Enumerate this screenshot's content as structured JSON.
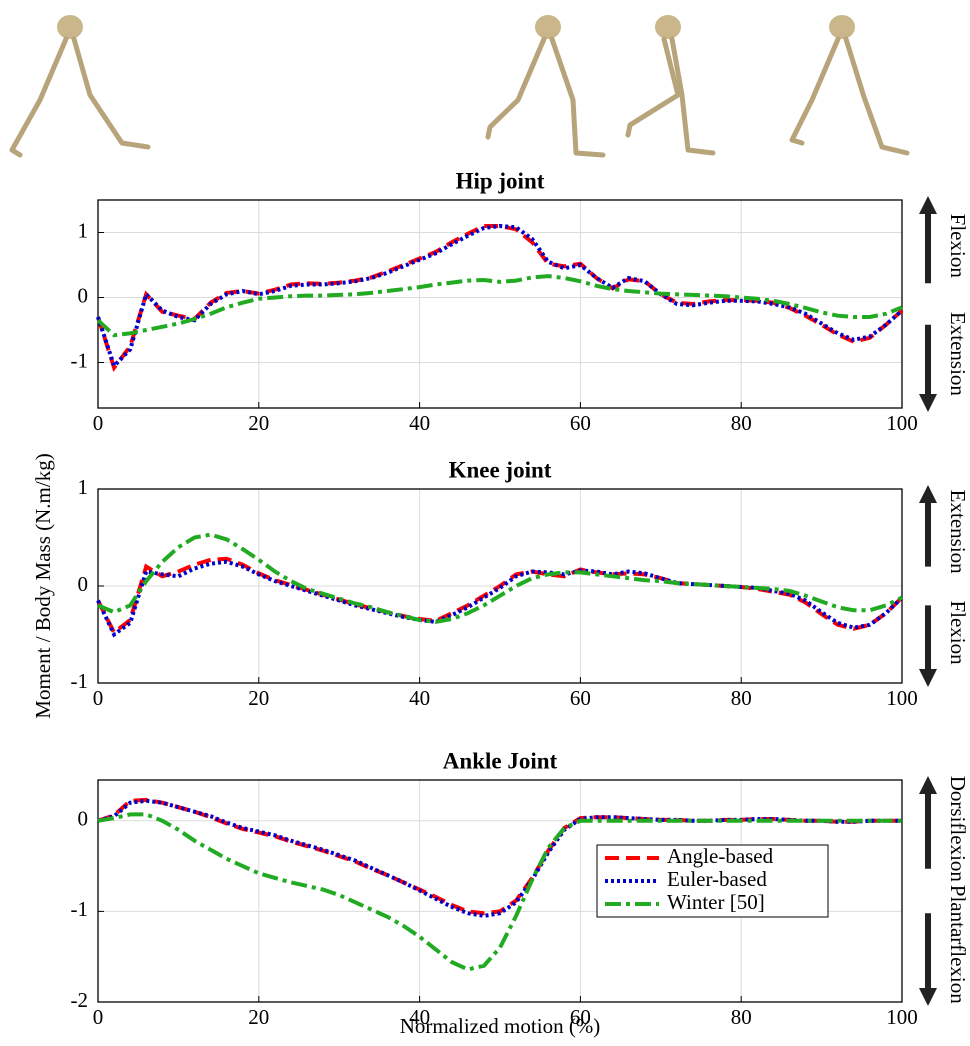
{
  "chart_data": [
    {
      "type": "line",
      "title": "Hip joint",
      "x": [
        0,
        2,
        4,
        6,
        8,
        10,
        12,
        14,
        16,
        18,
        20,
        22,
        24,
        26,
        28,
        30,
        32,
        34,
        36,
        38,
        40,
        42,
        44,
        46,
        48,
        50,
        52,
        54,
        56,
        58,
        60,
        62,
        64,
        66,
        68,
        70,
        72,
        74,
        76,
        78,
        80,
        82,
        84,
        86,
        88,
        90,
        92,
        94,
        96,
        98,
        100
      ],
      "series": [
        {
          "name": "Angle-based",
          "color": "#ff0000",
          "dash": "dashed",
          "values": [
            -0.3,
            -1.08,
            -0.75,
            0.05,
            -0.22,
            -0.28,
            -0.33,
            -0.08,
            0.07,
            0.1,
            0.06,
            0.12,
            0.2,
            0.22,
            0.21,
            0.23,
            0.26,
            0.31,
            0.4,
            0.5,
            0.6,
            0.7,
            0.85,
            0.98,
            1.1,
            1.1,
            1.05,
            0.85,
            0.52,
            0.48,
            0.52,
            0.3,
            0.14,
            0.28,
            0.25,
            0.05,
            -0.08,
            -0.1,
            -0.06,
            -0.04,
            -0.04,
            -0.05,
            -0.08,
            -0.16,
            -0.28,
            -0.42,
            -0.57,
            -0.68,
            -0.62,
            -0.42,
            -0.2
          ]
        },
        {
          "name": "Euler-based",
          "color": "#0000cc",
          "dash": "dotted",
          "values": [
            -0.3,
            -1.05,
            -0.8,
            0.05,
            -0.2,
            -0.3,
            -0.35,
            -0.1,
            0.05,
            0.1,
            0.05,
            0.1,
            0.18,
            0.2,
            0.2,
            0.22,
            0.25,
            0.3,
            0.38,
            0.48,
            0.58,
            0.68,
            0.82,
            0.95,
            1.07,
            1.1,
            1.08,
            0.9,
            0.55,
            0.45,
            0.5,
            0.3,
            0.15,
            0.3,
            0.25,
            0.05,
            -0.1,
            -0.12,
            -0.08,
            -0.05,
            -0.05,
            -0.06,
            -0.1,
            -0.15,
            -0.25,
            -0.4,
            -0.55,
            -0.65,
            -0.6,
            -0.42,
            -0.2
          ]
        },
        {
          "name": "Winter [50]",
          "color": "#22aa22",
          "dash": "dashdot",
          "values": [
            -0.35,
            -0.58,
            -0.55,
            -0.5,
            -0.45,
            -0.4,
            -0.33,
            -0.25,
            -0.15,
            -0.08,
            -0.02,
            0,
            0.02,
            0.03,
            0.03,
            0.04,
            0.05,
            0.07,
            0.1,
            0.13,
            0.16,
            0.2,
            0.23,
            0.26,
            0.27,
            0.24,
            0.26,
            0.31,
            0.33,
            0.3,
            0.25,
            0.18,
            0.13,
            0.1,
            0.08,
            0.06,
            0.05,
            0.04,
            0.03,
            0.02,
            0,
            -0.02,
            -0.05,
            -0.1,
            -0.16,
            -0.23,
            -0.28,
            -0.3,
            -0.3,
            -0.25,
            -0.15
          ]
        }
      ],
      "xlim": [
        0,
        100
      ],
      "xticks": [
        0,
        20,
        40,
        60,
        80,
        100
      ],
      "ylim": [
        -1.7,
        1.5
      ],
      "yticks": [
        -1,
        0,
        1
      ],
      "grid": true,
      "direction_labels": {
        "up": "Flexion",
        "down": "Extension"
      }
    },
    {
      "type": "line",
      "title": "Knee joint",
      "ylabel": "Moment / Body Mass (N.m/kg)",
      "x": [
        0,
        2,
        4,
        6,
        8,
        10,
        12,
        14,
        16,
        18,
        20,
        22,
        24,
        26,
        28,
        30,
        32,
        34,
        36,
        38,
        40,
        42,
        44,
        46,
        48,
        50,
        52,
        54,
        56,
        58,
        60,
        62,
        64,
        66,
        68,
        70,
        72,
        74,
        76,
        78,
        80,
        82,
        84,
        86,
        88,
        90,
        92,
        94,
        96,
        98,
        100
      ],
      "series": [
        {
          "name": "Angle-based",
          "color": "#ff0000",
          "dash": "dashed",
          "values": [
            -0.15,
            -0.48,
            -0.35,
            0.2,
            0.1,
            0.15,
            0.22,
            0.27,
            0.28,
            0.22,
            0.13,
            0.06,
            0.01,
            -0.04,
            -0.09,
            -0.14,
            -0.19,
            -0.23,
            -0.27,
            -0.31,
            -0.34,
            -0.36,
            -0.28,
            -0.2,
            -0.1,
            0,
            0.12,
            0.15,
            0.12,
            0.1,
            0.17,
            0.14,
            0.12,
            0.13,
            0.12,
            0.08,
            0.03,
            0.02,
            0.01,
            0,
            -0.01,
            -0.03,
            -0.06,
            -0.09,
            -0.17,
            -0.29,
            -0.4,
            -0.44,
            -0.4,
            -0.28,
            -0.12
          ]
        },
        {
          "name": "Euler-based",
          "color": "#0000cc",
          "dash": "dotted",
          "values": [
            -0.15,
            -0.5,
            -0.38,
            0.15,
            0.12,
            0.1,
            0.18,
            0.23,
            0.25,
            0.2,
            0.12,
            0.05,
            0,
            -0.05,
            -0.1,
            -0.15,
            -0.2,
            -0.24,
            -0.28,
            -0.32,
            -0.35,
            -0.37,
            -0.3,
            -0.22,
            -0.12,
            -0.02,
            0.1,
            0.15,
            0.14,
            0.12,
            0.16,
            0.15,
            0.12,
            0.15,
            0.13,
            0.08,
            0.03,
            0.02,
            0.01,
            0,
            -0.01,
            -0.02,
            -0.05,
            -0.08,
            -0.15,
            -0.27,
            -0.38,
            -0.43,
            -0.4,
            -0.28,
            -0.12
          ]
        },
        {
          "name": "Winter [50]",
          "color": "#22aa22",
          "dash": "dashdot",
          "values": [
            -0.2,
            -0.27,
            -0.2,
            0.05,
            0.25,
            0.4,
            0.5,
            0.53,
            0.48,
            0.38,
            0.27,
            0.15,
            0.05,
            -0.03,
            -0.08,
            -0.13,
            -0.18,
            -0.22,
            -0.27,
            -0.31,
            -0.35,
            -0.37,
            -0.34,
            -0.28,
            -0.2,
            -0.1,
            0,
            0.08,
            0.12,
            0.14,
            0.14,
            0.12,
            0.1,
            0.08,
            0.06,
            0.05,
            0.03,
            0.02,
            0.01,
            0,
            -0.01,
            -0.02,
            -0.03,
            -0.05,
            -0.1,
            -0.16,
            -0.22,
            -0.25,
            -0.25,
            -0.2,
            -0.12
          ]
        }
      ],
      "xlim": [
        0,
        100
      ],
      "xticks": [
        0,
        20,
        40,
        60,
        80,
        100
      ],
      "ylim": [
        -1,
        1
      ],
      "yticks": [
        -1,
        0,
        1
      ],
      "grid": true,
      "direction_labels": {
        "up": "Extension",
        "down": "Flexion"
      }
    },
    {
      "type": "line",
      "title": "Ankle Joint",
      "xlabel": "Normalized motion (%)",
      "x": [
        0,
        2,
        4,
        6,
        8,
        10,
        12,
        14,
        16,
        18,
        20,
        22,
        24,
        26,
        28,
        30,
        32,
        34,
        36,
        38,
        40,
        42,
        44,
        46,
        48,
        50,
        52,
        54,
        56,
        58,
        60,
        62,
        64,
        66,
        68,
        70,
        72,
        74,
        76,
        78,
        80,
        82,
        84,
        86,
        88,
        90,
        92,
        94,
        96,
        98,
        100
      ],
      "series": [
        {
          "name": "Angle-based",
          "color": "#ff0000",
          "dash": "dashed",
          "values": [
            0,
            0.06,
            0.22,
            0.23,
            0.2,
            0.15,
            0.1,
            0.04,
            -0.03,
            -0.09,
            -0.13,
            -0.17,
            -0.23,
            -0.28,
            -0.33,
            -0.39,
            -0.45,
            -0.53,
            -0.6,
            -0.68,
            -0.76,
            -0.84,
            -0.93,
            -1,
            -1.02,
            -1,
            -0.88,
            -0.63,
            -0.33,
            -0.08,
            0.03,
            0.04,
            0.04,
            0.03,
            0.02,
            0.01,
            0.01,
            0,
            0,
            0.01,
            0.01,
            0.02,
            0.02,
            0.01,
            0,
            0,
            -0.01,
            -0.01,
            0,
            0,
            0
          ]
        },
        {
          "name": "Euler-based",
          "color": "#0000cc",
          "dash": "dotted",
          "values": [
            0,
            0.05,
            0.2,
            0.22,
            0.2,
            0.15,
            0.1,
            0.05,
            -0.02,
            -0.08,
            -0.12,
            -0.16,
            -0.22,
            -0.27,
            -0.32,
            -0.38,
            -0.44,
            -0.52,
            -0.6,
            -0.68,
            -0.77,
            -0.86,
            -0.95,
            -1.02,
            -1.05,
            -1.02,
            -0.9,
            -0.65,
            -0.35,
            -0.1,
            0.02,
            0.04,
            0.04,
            0.03,
            0.02,
            0.01,
            0.01,
            0,
            0,
            0.01,
            0.01,
            0.02,
            0.02,
            0.01,
            0,
            0,
            -0.01,
            -0.01,
            0,
            0,
            0
          ]
        },
        {
          "name": "Winter [50]",
          "color": "#22aa22",
          "dash": "dashdot",
          "values": [
            0,
            0.03,
            0.07,
            0.07,
            0,
            -0.1,
            -0.22,
            -0.32,
            -0.42,
            -0.5,
            -0.58,
            -0.63,
            -0.68,
            -0.72,
            -0.76,
            -0.82,
            -0.9,
            -0.98,
            -1.06,
            -1.16,
            -1.28,
            -1.42,
            -1.56,
            -1.64,
            -1.6,
            -1.4,
            -1.05,
            -0.65,
            -0.3,
            -0.08,
            0,
            0,
            0,
            0,
            0,
            0,
            0,
            0,
            0,
            0,
            0,
            0,
            0,
            0,
            0,
            0,
            0,
            0,
            0,
            0,
            0
          ]
        }
      ],
      "xlim": [
        0,
        100
      ],
      "xticks": [
        0,
        20,
        40,
        60,
        80,
        100
      ],
      "ylim": [
        -2,
        0.45
      ],
      "yticks": [
        -2,
        -1,
        0
      ],
      "grid": true,
      "legend": "lower right",
      "direction_labels": {
        "up": "Dorsiflexion",
        "down": "Plantarflexion"
      }
    }
  ]
}
